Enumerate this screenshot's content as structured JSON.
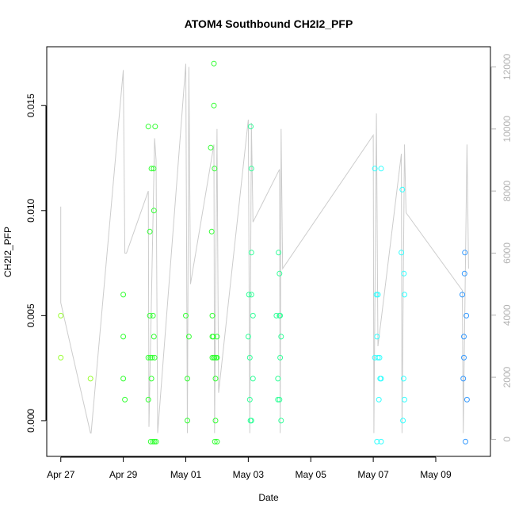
{
  "chart_data": {
    "type": "scatter",
    "title": "ATOM4 Southbound CH2I2_PFP",
    "xlabel": "Date",
    "ylabel": "CH2I2_PFP",
    "x_tick_labels": [
      "Apr 27",
      "Apr 29",
      "May 01",
      "May 03",
      "May 05",
      "May 07",
      "May 09"
    ],
    "x_tick_days": [
      0,
      2,
      4,
      6,
      8,
      10,
      12
    ],
    "xlim_days": [
      -0.45,
      13.75
    ],
    "y_ticks": [
      0.0,
      0.005,
      0.01,
      0.015
    ],
    "y_tick_labels": [
      "0.000",
      "0.005",
      "0.010",
      "0.015"
    ],
    "ylim": [
      -0.0017,
      0.0178
    ],
    "right_axis": {
      "ticks": [
        0,
        2000,
        4000,
        6000,
        8000,
        10000,
        12000
      ],
      "tick_labels": [
        "0",
        "2000",
        "4000",
        "6000",
        "8000",
        "10000",
        "12000"
      ],
      "ylim": [
        -550,
        12650
      ],
      "color": "#b3b3b3"
    },
    "colors": {
      "points_palette": [
        "#99ff33",
        "#33ff33",
        "#33ff99",
        "#33ffff",
        "#3399ff"
      ],
      "altitude_line": "#cccccc",
      "axis": "#000000"
    },
    "series": [
      {
        "name": "CH2I2_PFP",
        "points": [
          [
            0.0,
            0.005
          ],
          [
            0.0,
            0.003
          ],
          [
            0.95,
            0.002
          ],
          [
            2.0,
            0.006
          ],
          [
            2.0,
            0.004
          ],
          [
            2.0,
            0.002
          ],
          [
            2.05,
            0.001
          ],
          [
            2.8,
            0.001
          ],
          [
            2.8,
            0.003
          ],
          [
            2.8,
            0.014
          ],
          [
            2.85,
            0.009
          ],
          [
            2.85,
            0.005
          ],
          [
            2.87,
            0.003
          ],
          [
            2.88,
            -0.001
          ],
          [
            2.9,
            0.012
          ],
          [
            2.9,
            0.002
          ],
          [
            2.92,
            0.003
          ],
          [
            2.95,
            0.005
          ],
          [
            2.95,
            -0.001
          ],
          [
            2.97,
            0.012
          ],
          [
            2.98,
            0.01
          ],
          [
            2.98,
            0.004
          ],
          [
            3.0,
            0.003
          ],
          [
            3.0,
            -0.001
          ],
          [
            3.02,
            0.014
          ],
          [
            3.05,
            -0.001
          ],
          [
            4.0,
            0.005
          ],
          [
            4.05,
            0.002
          ],
          [
            4.05,
            0.0
          ],
          [
            4.1,
            0.004
          ],
          [
            4.8,
            0.013
          ],
          [
            4.83,
            0.009
          ],
          [
            4.85,
            0.005
          ],
          [
            4.85,
            0.004
          ],
          [
            4.85,
            0.003
          ],
          [
            4.88,
            0.004
          ],
          [
            4.9,
            0.003
          ],
          [
            4.9,
            0.017
          ],
          [
            4.9,
            0.015
          ],
          [
            4.92,
            0.012
          ],
          [
            4.92,
            0.003
          ],
          [
            4.93,
            -0.001
          ],
          [
            4.95,
            0.002
          ],
          [
            4.95,
            0.0
          ],
          [
            4.97,
            0.003
          ],
          [
            5.0,
            0.004
          ],
          [
            5.0,
            0.003
          ],
          [
            5.0,
            -0.001
          ],
          [
            6.0,
            0.004
          ],
          [
            6.02,
            0.006
          ],
          [
            6.05,
            0.003
          ],
          [
            6.05,
            0.001
          ],
          [
            6.07,
            0.0
          ],
          [
            6.08,
            0.014
          ],
          [
            6.1,
            0.012
          ],
          [
            6.1,
            0.008
          ],
          [
            6.1,
            0.006
          ],
          [
            6.1,
            0.0
          ],
          [
            6.15,
            0.005
          ],
          [
            6.15,
            0.002
          ],
          [
            6.9,
            0.005
          ],
          [
            6.95,
            0.002
          ],
          [
            6.95,
            0.001
          ],
          [
            6.97,
            0.008
          ],
          [
            7.0,
            0.001
          ],
          [
            7.0,
            0.005
          ],
          [
            7.0,
            0.007
          ],
          [
            7.02,
            0.003
          ],
          [
            7.02,
            0.005
          ],
          [
            7.05,
            0.004
          ],
          [
            7.05,
            0.0
          ],
          [
            10.05,
            0.012
          ],
          [
            10.05,
            0.003
          ],
          [
            10.1,
            0.006
          ],
          [
            10.12,
            -0.001
          ],
          [
            10.12,
            0.004
          ],
          [
            10.15,
            0.003
          ],
          [
            10.15,
            0.006
          ],
          [
            10.18,
            0.001
          ],
          [
            10.2,
            0.003
          ],
          [
            10.22,
            0.002
          ],
          [
            10.25,
            0.012
          ],
          [
            10.25,
            0.002
          ],
          [
            10.25,
            -0.001
          ],
          [
            10.9,
            0.008
          ],
          [
            10.93,
            0.011
          ],
          [
            10.95,
            0.0
          ],
          [
            10.97,
            0.002
          ],
          [
            10.98,
            0.007
          ],
          [
            11.0,
            0.006
          ],
          [
            11.0,
            0.001
          ],
          [
            12.85,
            0.006
          ],
          [
            12.88,
            0.002
          ],
          [
            12.9,
            0.003
          ],
          [
            12.9,
            0.004
          ],
          [
            12.92,
            0.007
          ],
          [
            12.93,
            0.008
          ],
          [
            12.95,
            -0.001
          ],
          [
            12.98,
            0.005
          ],
          [
            13.0,
            0.001
          ]
        ]
      },
      {
        "name": "Altitude",
        "axis": "right",
        "points": [
          [
            0.0,
            7500
          ],
          [
            0.0,
            4400
          ],
          [
            0.95,
            200
          ],
          [
            0.97,
            200
          ],
          [
            2.0,
            11900
          ],
          [
            2.05,
            6000
          ],
          [
            2.1,
            6000
          ],
          [
            2.8,
            8000
          ],
          [
            2.82,
            400
          ],
          [
            3.0,
            9700
          ],
          [
            3.05,
            9000
          ],
          [
            3.1,
            200
          ],
          [
            4.0,
            12100
          ],
          [
            4.05,
            200
          ],
          [
            4.1,
            12000
          ],
          [
            4.15,
            5000
          ],
          [
            4.9,
            9500
          ],
          [
            4.92,
            200
          ],
          [
            5.0,
            10000
          ],
          [
            5.05,
            1500
          ],
          [
            6.0,
            10300
          ],
          [
            6.05,
            200
          ],
          [
            6.1,
            10200
          ],
          [
            6.15,
            7000
          ],
          [
            7.0,
            8700
          ],
          [
            7.02,
            200
          ],
          [
            7.05,
            10000
          ],
          [
            7.1,
            5500
          ],
          [
            10.0,
            9800
          ],
          [
            10.02,
            200
          ],
          [
            10.1,
            10500
          ],
          [
            10.15,
            3000
          ],
          [
            10.9,
            9200
          ],
          [
            10.92,
            200
          ],
          [
            11.0,
            9500
          ],
          [
            11.05,
            7300
          ],
          [
            12.85,
            4800
          ],
          [
            12.88,
            200
          ],
          [
            13.0,
            9500
          ],
          [
            13.05,
            5500
          ]
        ]
      }
    ]
  }
}
